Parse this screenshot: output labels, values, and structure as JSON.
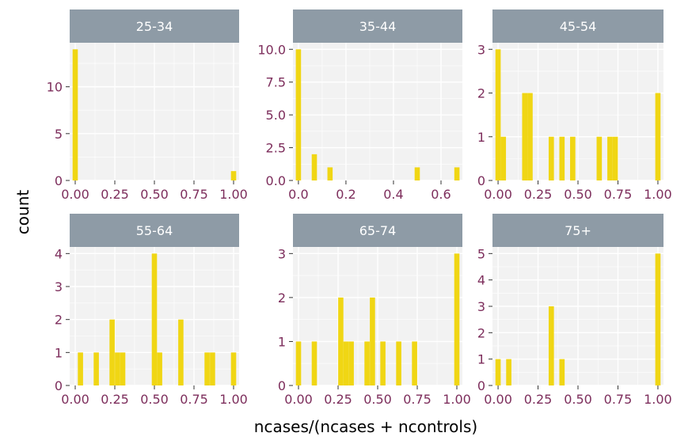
{
  "colors": {
    "bar": "#f0d614",
    "panel_bg": "#f2f2f2",
    "grid": "#ffffff",
    "strip_bg": "#8e9ba6",
    "strip_text": "#ffffff",
    "tick_label": "#7d2e5c",
    "tick_mark": "#333333"
  },
  "chart_data": {
    "type": "bar",
    "subtype": "faceted histogram",
    "xlabel": "ncases/(ncases + ncontrols)",
    "ylabel": "count",
    "grid": true,
    "facets": [
      {
        "name": "25-34",
        "xlim": [
          -0.035,
          1.035
        ],
        "ylim": [
          0,
          14.7
        ],
        "xticks": [
          0,
          0.25,
          0.5,
          0.75,
          1
        ],
        "xtick_labels": [
          "0.00",
          "0.25",
          "0.50",
          "0.75",
          "1.00"
        ],
        "yticks": [
          0,
          5,
          10
        ],
        "ytick_labels": [
          "0",
          "5",
          "10"
        ],
        "bin_width": 0.033,
        "bars": [
          {
            "x": 0.0,
            "count": 14
          },
          {
            "x": 1.0,
            "count": 1
          }
        ]
      },
      {
        "name": "35-44",
        "xlim": [
          -0.023,
          0.69
        ],
        "ylim": [
          0,
          10.5
        ],
        "xticks": [
          0,
          0.2,
          0.4,
          0.6
        ],
        "xtick_labels": [
          "0.0",
          "0.2",
          "0.4",
          "0.6"
        ],
        "yticks": [
          0,
          2.5,
          5,
          7.5,
          10
        ],
        "ytick_labels": [
          "0.0",
          "2.5",
          "5.0",
          "7.5",
          "10.0"
        ],
        "bin_width": 0.022,
        "bars": [
          {
            "x": 0.0,
            "count": 10
          },
          {
            "x": 0.067,
            "count": 2
          },
          {
            "x": 0.133,
            "count": 1
          },
          {
            "x": 0.5,
            "count": 1
          },
          {
            "x": 0.667,
            "count": 1
          }
        ]
      },
      {
        "name": "45-54",
        "xlim": [
          -0.035,
          1.035
        ],
        "ylim": [
          0,
          3.15
        ],
        "xticks": [
          0,
          0.25,
          0.5,
          0.75,
          1
        ],
        "xtick_labels": [
          "0.00",
          "0.25",
          "0.50",
          "0.75",
          "1.00"
        ],
        "yticks": [
          0,
          1,
          2,
          3
        ],
        "ytick_labels": [
          "0",
          "1",
          "2",
          "3"
        ],
        "bin_width": 0.033,
        "bars": [
          {
            "x": 0.0,
            "count": 3
          },
          {
            "x": 0.033,
            "count": 1
          },
          {
            "x": 0.167,
            "count": 2
          },
          {
            "x": 0.2,
            "count": 2
          },
          {
            "x": 0.333,
            "count": 1
          },
          {
            "x": 0.4,
            "count": 1
          },
          {
            "x": 0.467,
            "count": 1
          },
          {
            "x": 0.633,
            "count": 1
          },
          {
            "x": 0.7,
            "count": 1
          },
          {
            "x": 0.733,
            "count": 1
          },
          {
            "x": 1.0,
            "count": 2
          }
        ]
      },
      {
        "name": "55-64",
        "xlim": [
          -0.035,
          1.035
        ],
        "ylim": [
          0,
          4.2
        ],
        "xticks": [
          0,
          0.25,
          0.5,
          0.75,
          1
        ],
        "xtick_labels": [
          "0.00",
          "0.25",
          "0.50",
          "0.75",
          "1.00"
        ],
        "yticks": [
          0,
          1,
          2,
          3,
          4
        ],
        "ytick_labels": [
          "0",
          "1",
          "2",
          "3",
          "4"
        ],
        "bin_width": 0.033,
        "bars": [
          {
            "x": 0.033,
            "count": 1
          },
          {
            "x": 0.133,
            "count": 1
          },
          {
            "x": 0.233,
            "count": 2
          },
          {
            "x": 0.267,
            "count": 1
          },
          {
            "x": 0.3,
            "count": 1
          },
          {
            "x": 0.5,
            "count": 4
          },
          {
            "x": 0.533,
            "count": 1
          },
          {
            "x": 0.667,
            "count": 2
          },
          {
            "x": 0.833,
            "count": 1
          },
          {
            "x": 0.867,
            "count": 1
          },
          {
            "x": 1.0,
            "count": 1
          }
        ]
      },
      {
        "name": "65-74",
        "xlim": [
          -0.035,
          1.035
        ],
        "ylim": [
          0,
          3.15
        ],
        "xticks": [
          0,
          0.25,
          0.5,
          0.75,
          1
        ],
        "xtick_labels": [
          "0.00",
          "0.25",
          "0.50",
          "0.75",
          "1.00"
        ],
        "yticks": [
          0,
          1,
          2,
          3
        ],
        "ytick_labels": [
          "0",
          "1",
          "2",
          "3"
        ],
        "bin_width": 0.033,
        "bars": [
          {
            "x": 0.0,
            "count": 1
          },
          {
            "x": 0.1,
            "count": 1
          },
          {
            "x": 0.267,
            "count": 2
          },
          {
            "x": 0.3,
            "count": 1
          },
          {
            "x": 0.333,
            "count": 1
          },
          {
            "x": 0.433,
            "count": 1
          },
          {
            "x": 0.467,
            "count": 2
          },
          {
            "x": 0.533,
            "count": 1
          },
          {
            "x": 0.633,
            "count": 1
          },
          {
            "x": 0.733,
            "count": 1
          },
          {
            "x": 1.0,
            "count": 3
          }
        ]
      },
      {
        "name": "75+",
        "xlim": [
          -0.035,
          1.035
        ],
        "ylim": [
          0,
          5.25
        ],
        "xticks": [
          0,
          0.25,
          0.5,
          0.75,
          1
        ],
        "xtick_labels": [
          "0.00",
          "0.25",
          "0.50",
          "0.75",
          "1.00"
        ],
        "yticks": [
          0,
          1,
          2,
          3,
          4,
          5
        ],
        "ytick_labels": [
          "0",
          "1",
          "2",
          "3",
          "4",
          "5"
        ],
        "bin_width": 0.033,
        "bars": [
          {
            "x": 0.0,
            "count": 1
          },
          {
            "x": 0.067,
            "count": 1
          },
          {
            "x": 0.333,
            "count": 3
          },
          {
            "x": 0.4,
            "count": 1
          },
          {
            "x": 1.0,
            "count": 5
          }
        ]
      }
    ]
  }
}
